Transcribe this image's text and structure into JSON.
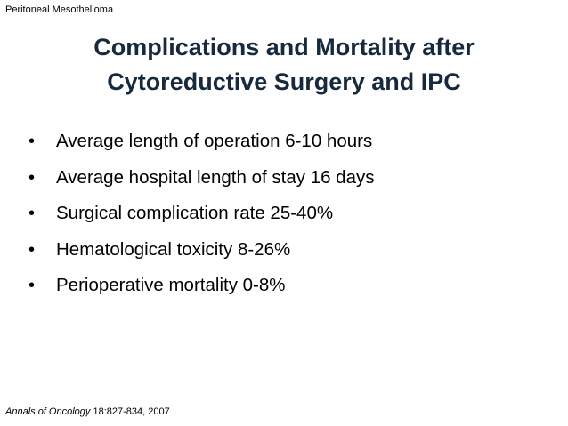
{
  "header": {
    "label": "Peritoneal Mesothelioma"
  },
  "title": {
    "line1": "Complications and Mortality after",
    "line2": "Cytoreductive Surgery and IPC"
  },
  "bullets": {
    "marker": "•",
    "items": [
      "Average length of operation 6-10 hours",
      "Average hospital length of stay 16 days",
      "Surgical complication rate 25-40%",
      "Hematological toxicity 8-26%",
      "Perioperative mortality 0-8%"
    ]
  },
  "citation": {
    "journal": "Annals of Oncology",
    "details": "18:827-834, 2007"
  }
}
